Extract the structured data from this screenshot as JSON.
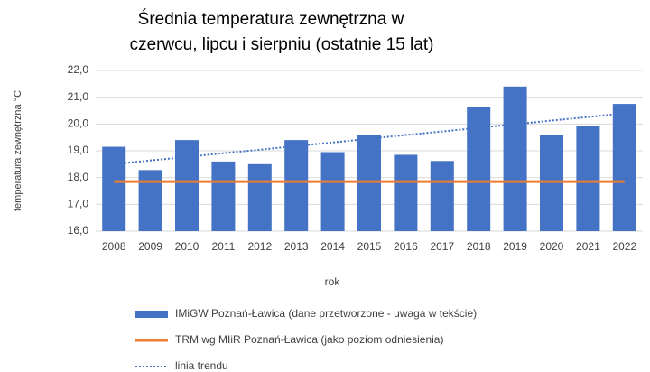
{
  "chart_data": {
    "type": "bar",
    "title": [
      "Średnia temperatura zewnętrzna w",
      "czerwcu, lipcu i sierpniu (ostatnie 15 lat)"
    ],
    "y_label": "temperatura zewnętrzna °C",
    "x_label": "rok",
    "categories": [
      "2008",
      "2009",
      "2010",
      "2011",
      "2012",
      "2013",
      "2014",
      "2015",
      "2016",
      "2017",
      "2018",
      "2019",
      "2020",
      "2021",
      "2022"
    ],
    "series": [
      {
        "name": "IMiGW Poznań-Ławica (dane przetworzone - uwaga w tekście)",
        "type": "bar",
        "color": "#4472c4",
        "values": [
          19.15,
          18.28,
          19.4,
          18.6,
          18.5,
          19.4,
          18.95,
          19.6,
          18.85,
          18.62,
          20.65,
          21.4,
          19.6,
          19.92,
          20.75
        ]
      },
      {
        "name": "TRM wg MIiR Poznań-Ławica (jako poziom odniesienia)",
        "type": "line",
        "color": "#ed7d31",
        "dash": "solid",
        "values": [
          17.85,
          17.85,
          17.85,
          17.85,
          17.85,
          17.85,
          17.85,
          17.85,
          17.85,
          17.85,
          17.85,
          17.85,
          17.85,
          17.85,
          17.85
        ]
      },
      {
        "name": "linia trendu",
        "type": "line",
        "color": "#4472c4",
        "dash": "dotted",
        "values": [
          18.5,
          18.64,
          18.77,
          18.91,
          19.04,
          19.18,
          19.31,
          19.45,
          19.59,
          19.72,
          19.86,
          19.99,
          20.13,
          20.26,
          20.4
        ]
      }
    ],
    "ylim": [
      16,
      22
    ],
    "yticks": [
      {
        "value": 16,
        "label": "16,0"
      },
      {
        "value": 17,
        "label": "17,0"
      },
      {
        "value": 18,
        "label": "18,0"
      },
      {
        "value": 19,
        "label": "19,0"
      },
      {
        "value": 20,
        "label": "20,0"
      },
      {
        "value": 21,
        "label": "21,0"
      },
      {
        "value": 22,
        "label": "22,0"
      }
    ],
    "grid": true,
    "legend": "bottom"
  }
}
